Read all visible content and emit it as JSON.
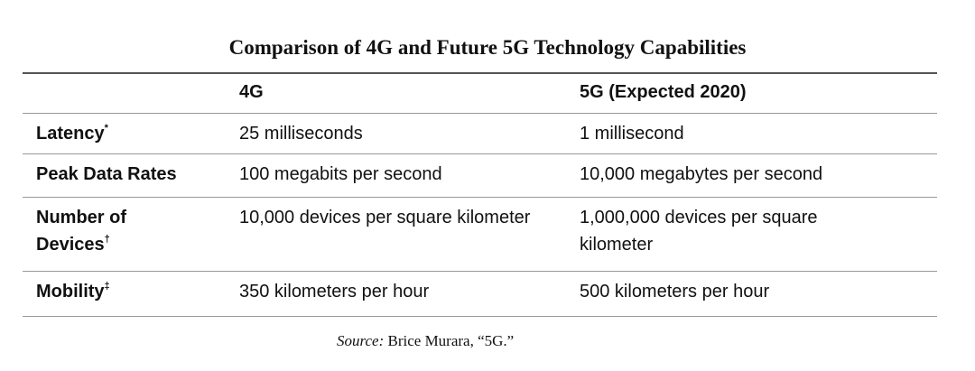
{
  "title": "Comparison of 4G and Future 5G Technology Capabilities",
  "table": {
    "columns": [
      "4G",
      "5G (Expected 2020)"
    ],
    "rows": [
      {
        "label": "Latency",
        "note": "*",
        "cells": [
          "25 milliseconds",
          "1 millisecond"
        ]
      },
      {
        "label": "Peak Data Rates",
        "cells": [
          "100 megabits per second",
          "10,000 megabytes per second"
        ]
      },
      {
        "label": "Number of Devices",
        "note": "†",
        "cells": [
          "10,000 devices per square kilometer",
          "1,000,000 devices per square kilometer"
        ]
      },
      {
        "label": "Mobility",
        "note": "‡",
        "cells": [
          "350 kilometers per hour",
          "500 kilometers per hour"
        ]
      }
    ]
  },
  "source": {
    "prefix": "Source:",
    "text": "Brice Murara, “5G.”"
  }
}
